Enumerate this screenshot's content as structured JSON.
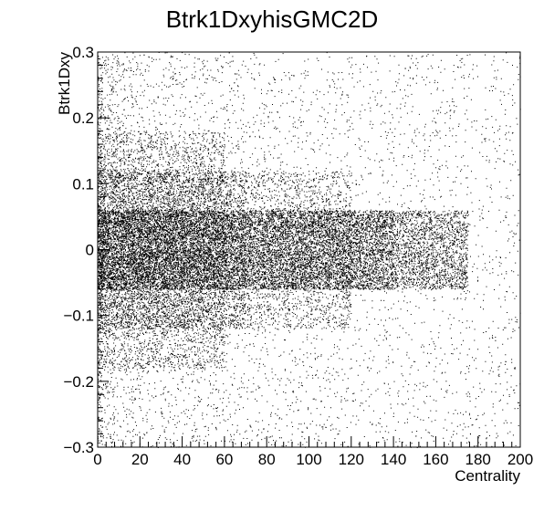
{
  "chart_data": {
    "type": "scatter",
    "title": "Btrk1DxyhisGMC2D",
    "xlabel": "Centrality",
    "ylabel": "Btrk1Dxy",
    "xlim": [
      0,
      200
    ],
    "ylim": [
      -0.3,
      0.3
    ],
    "x_ticks": [
      0,
      20,
      40,
      60,
      80,
      100,
      120,
      140,
      160,
      180,
      200
    ],
    "x_tick_labels": [
      "0",
      "20",
      "40",
      "60",
      "80",
      "100",
      "120",
      "140",
      "160",
      "180",
      "200"
    ],
    "y_ticks": [
      -0.3,
      -0.2,
      -0.1,
      0,
      0.1,
      0.2,
      0.3
    ],
    "y_tick_labels": [
      "−0.3",
      "−0.2",
      "−0.1",
      "0",
      "0.1",
      "0.2",
      "0.3"
    ],
    "grid": false,
    "legend": "none",
    "marker_color": "#000000",
    "density_regions": [
      {
        "x": [
          0,
          100
        ],
        "y": [
          -0.06,
          0.06
        ],
        "level": "saturated"
      },
      {
        "x": [
          100,
          140
        ],
        "y": [
          -0.06,
          0.06
        ],
        "level": "high"
      },
      {
        "x": [
          140,
          175
        ],
        "y": [
          -0.06,
          0.06
        ],
        "level": "medium"
      },
      {
        "x": [
          0,
          70
        ],
        "y": [
          -0.12,
          0.12
        ],
        "level": "saturated"
      },
      {
        "x": [
          70,
          120
        ],
        "y": [
          -0.12,
          0.12
        ],
        "level": "medium"
      },
      {
        "x": [
          0,
          60
        ],
        "y": [
          -0.18,
          0.18
        ],
        "level": "high"
      },
      {
        "x": [
          0,
          200
        ],
        "y": [
          -0.3,
          0.3
        ],
        "level": "sparse"
      }
    ]
  }
}
